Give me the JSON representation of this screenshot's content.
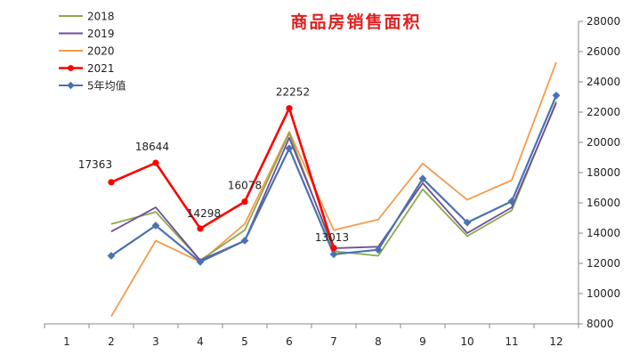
{
  "chart_data": {
    "type": "line",
    "title": "商品房销售面积",
    "xlabel": "",
    "ylabel": "",
    "categories": [
      "1",
      "2",
      "3",
      "4",
      "5",
      "6",
      "7",
      "8",
      "9",
      "10",
      "11",
      "12"
    ],
    "ylim": [
      8000,
      28000
    ],
    "yticks": [
      8000,
      10000,
      12000,
      14000,
      16000,
      18000,
      20000,
      22000,
      24000,
      26000,
      28000
    ],
    "y_axis_side": "right",
    "grid": false,
    "legend_position": "top-left",
    "series": [
      {
        "name": "2018",
        "color": "#8AA94E",
        "marker": "none",
        "values": [
          null,
          14600,
          15400,
          12200,
          14200,
          20600,
          12800,
          12500,
          16900,
          13800,
          15500,
          22700
        ]
      },
      {
        "name": "2019",
        "color": "#6E4F9C",
        "marker": "none",
        "values": [
          null,
          14100,
          15700,
          12200,
          13500,
          20300,
          13000,
          13100,
          17300,
          14000,
          15700,
          22600
        ]
      },
      {
        "name": "2020",
        "color": "#F59B4C",
        "marker": "none",
        "values": [
          null,
          8500,
          13500,
          12100,
          14600,
          20700,
          14200,
          14900,
          18600,
          16200,
          17500,
          25300
        ]
      },
      {
        "name": "2021",
        "color": "#FF0000",
        "marker": "circle",
        "values": [
          null,
          17363,
          18644,
          14298,
          16078,
          22252,
          13013,
          null,
          null,
          null,
          null,
          null
        ],
        "labels": [
          "",
          "17363",
          "18644",
          "14298",
          "16078",
          "22252",
          "13013",
          "",
          "",
          "",
          "",
          ""
        ]
      },
      {
        "name": "5年均值",
        "color": "#4A72B0",
        "marker": "diamond",
        "values": [
          null,
          12500,
          14500,
          12100,
          13500,
          19600,
          12600,
          12900,
          17600,
          14700,
          16100,
          23100
        ]
      }
    ]
  }
}
